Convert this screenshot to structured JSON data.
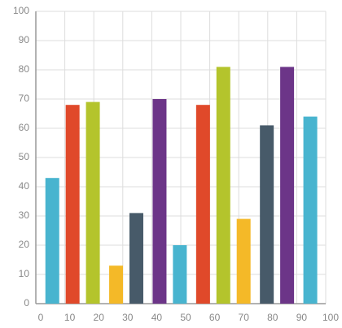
{
  "chart_data": {
    "type": "bar",
    "x": [
      4,
      11,
      18,
      26,
      33,
      41,
      48,
      56,
      63,
      70,
      78,
      85,
      93
    ],
    "values": [
      43,
      68,
      69,
      13,
      31,
      70,
      20,
      68,
      81,
      29,
      61,
      81,
      64
    ],
    "colors": [
      "#48b4cf",
      "#e0492a",
      "#b4c42c",
      "#f4b928",
      "#475a69",
      "#6c3588",
      "#48b4cf",
      "#e0492a",
      "#b4c42c",
      "#f4b928",
      "#475a69",
      "#6c3588",
      "#48b4cf"
    ],
    "xlim": [
      0,
      100
    ],
    "xticks": [
      0,
      10,
      20,
      30,
      40,
      50,
      60,
      70,
      80,
      90,
      100
    ],
    "ylim": [
      0,
      100
    ],
    "yticks": [
      0,
      10,
      20,
      30,
      40,
      50,
      60,
      70,
      80,
      90,
      100
    ],
    "grid": true
  }
}
